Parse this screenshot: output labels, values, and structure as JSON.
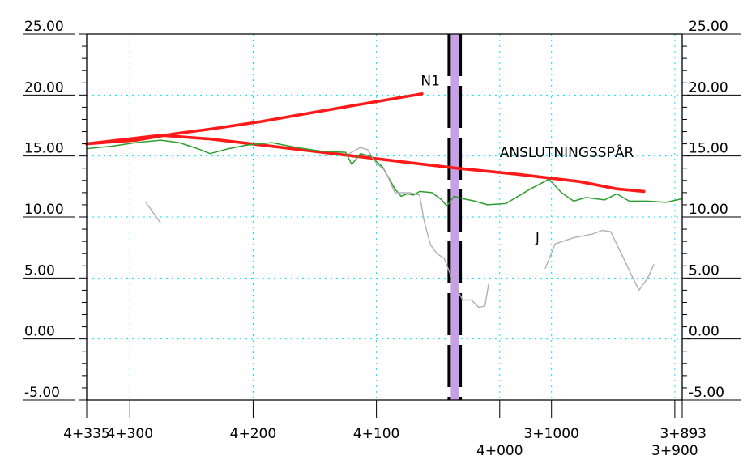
{
  "chart_data": {
    "type": "line",
    "title": "",
    "xlabel": "",
    "ylabel": "",
    "ylim": [
      -5,
      25
    ],
    "y_ticks": [
      "25.00",
      "20.00",
      "15.00",
      "10.00",
      "5.00",
      "0.00",
      "-5.00"
    ],
    "y_tick_values": [
      25,
      20,
      15,
      10,
      5,
      0,
      -5
    ],
    "x_range": [
      0,
      483
    ],
    "x_note": "x = chainage distance (m) from left edge of profile",
    "x_ticks": [
      {
        "label": "4+335",
        "x": 0
      },
      {
        "label": "4+300",
        "x": 35
      },
      {
        "label": "4+200",
        "x": 135
      },
      {
        "label": "4+100",
        "x": 235
      },
      {
        "label": "4+000",
        "x": 335
      },
      {
        "label": "3+1000",
        "x": 377
      },
      {
        "label": "3+900",
        "x": 477
      },
      {
        "label": "3+893",
        "x": 483
      }
    ],
    "grid": true,
    "annotations": [
      {
        "text": "N1",
        "x": 271,
        "y": 20.8
      },
      {
        "text": "ANSLUTNINGSSPÅR",
        "x": 335,
        "y": 14.9
      },
      {
        "text": "J",
        "x": 364,
        "y": 7.9
      }
    ],
    "crossing_band": {
      "x_from": 294,
      "x_to": 303,
      "color": "#c8a0e8"
    },
    "series": [
      {
        "color": "#ff1a1a",
        "role": "design-line-N1",
        "x": [
          0,
          40,
          70,
          100,
          140,
          180,
          220,
          272
        ],
        "y": [
          16.0,
          16.3,
          16.8,
          17.2,
          17.8,
          18.5,
          19.2,
          20.1
        ]
      },
      {
        "color": "#ff1a1a",
        "role": "design-line-connection-track",
        "x": [
          0,
          60,
          100,
          150,
          200,
          250,
          300,
          350,
          400,
          430,
          452
        ],
        "y": [
          16.0,
          16.7,
          16.4,
          15.8,
          15.2,
          14.6,
          14.0,
          13.5,
          12.9,
          12.3,
          12.1
        ]
      },
      {
        "color": "#2e9e2e",
        "role": "ground-line",
        "x": [
          0,
          20,
          40,
          60,
          75,
          90,
          100,
          115,
          130,
          150,
          170,
          190,
          210,
          215,
          222,
          230,
          240,
          250,
          255,
          260,
          265,
          270,
          280,
          288,
          292,
          298,
          305,
          315,
          325,
          340,
          360,
          375,
          385,
          395,
          405,
          420,
          430,
          440,
          455,
          470,
          483
        ],
        "y": [
          15.6,
          15.8,
          16.1,
          16.3,
          16.1,
          15.6,
          15.2,
          15.6,
          15.9,
          16.1,
          15.7,
          15.4,
          15.3,
          14.3,
          15.2,
          15.0,
          14.1,
          12.3,
          11.7,
          11.9,
          11.8,
          12.1,
          12.0,
          11.4,
          10.9,
          11.7,
          11.5,
          11.3,
          11.0,
          11.1,
          12.3,
          13.1,
          12.0,
          11.3,
          11.6,
          11.4,
          11.9,
          11.3,
          11.3,
          11.2,
          11.5
        ]
      },
      {
        "color": "#b0b0b0",
        "role": "existing-ground-segment-1",
        "x": [
          48,
          60
        ],
        "y": [
          11.2,
          9.5
        ]
      },
      {
        "color": "#b0b0b0",
        "role": "existing-ground-segment-2",
        "x": [
          213,
          222,
          228,
          235,
          242,
          250,
          262,
          270,
          274,
          279,
          284,
          290,
          298,
          305,
          312,
          318,
          323,
          326
        ],
        "y": [
          15.2,
          15.7,
          15.5,
          14.4,
          13.8,
          12.0,
          12.0,
          11.8,
          9.5,
          7.7,
          7.0,
          6.6,
          4.5,
          3.2,
          3.2,
          2.6,
          2.7,
          4.5
        ]
      },
      {
        "color": "#b0b0b0",
        "role": "existing-ground-segment-3",
        "x": [
          372,
          380,
          395,
          410,
          418,
          425,
          436,
          443,
          448,
          455,
          460
        ],
        "y": [
          5.8,
          7.8,
          8.3,
          8.6,
          8.9,
          8.8,
          6.5,
          5.0,
          4.0,
          5.0,
          6.1
        ]
      }
    ]
  }
}
